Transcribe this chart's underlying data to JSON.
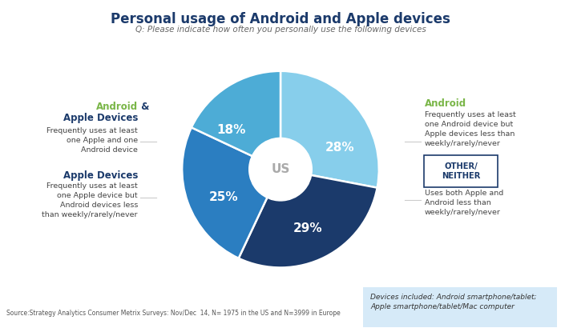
{
  "title": "Personal usage of Android and Apple devices",
  "subtitle": "Q: Please indicate how often you personally use the following devices",
  "slices": [
    28,
    29,
    25,
    18
  ],
  "colors": [
    "#87CEEB",
    "#1B3A6B",
    "#2B7EC1",
    "#4DACD6"
  ],
  "labels_pct": [
    "28%",
    "29%",
    "25%",
    "18%"
  ],
  "center_label": "US",
  "source_text": "Source:Strategy Analytics Consumer Metrix Surveys: Nov/Dec  14, N= 1975 in the US and N=3999 in Europe",
  "footnote_text": "Devices included: Android smartphone/tablet;\nApple smartphone/tablet/Mac computer",
  "title_color": "#1B3A6B",
  "subtitle_color": "#666666",
  "green_color": "#7AB648",
  "dark_blue": "#1B3A6B",
  "footnote_bg": "#D6EAF8"
}
